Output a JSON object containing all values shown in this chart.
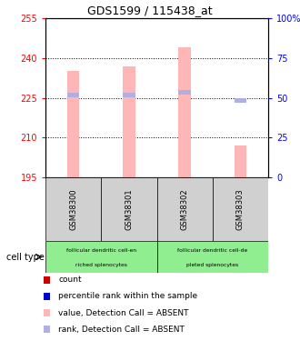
{
  "title": "GDS1599 / 115438_at",
  "samples": [
    "GSM38300",
    "GSM38301",
    "GSM38302",
    "GSM38303"
  ],
  "ylim_left": [
    195,
    255
  ],
  "yticks_left": [
    195,
    210,
    225,
    240,
    255
  ],
  "yticks_right": [
    0,
    25,
    50,
    75,
    100
  ],
  "bar_bottoms": [
    195,
    195,
    195,
    195
  ],
  "bar_tops": [
    235,
    237,
    244,
    207
  ],
  "rank_values": [
    226,
    226,
    227,
    224
  ],
  "bar_color": "#ffb6b6",
  "rank_color": "#b0b0e0",
  "sample_box_color": "#d0d0d0",
  "cell_type_color": "#90ee90",
  "dotted_yticks": [
    210,
    225,
    240
  ],
  "colors_leg": [
    "#cc0000",
    "#0000cc",
    "#ffb6b6",
    "#b0b0e0"
  ],
  "labels_leg": [
    "count",
    "percentile rank within the sample",
    "value, Detection Call = ABSENT",
    "rank, Detection Call = ABSENT"
  ],
  "cell_type_label": "cell type",
  "group1_text1": "follicular dendritic cell-en",
  "group1_text2": "riched splenocytes",
  "group2_text1": "follicular dendritic cell-de",
  "group2_text2": "pleted splenocytes"
}
